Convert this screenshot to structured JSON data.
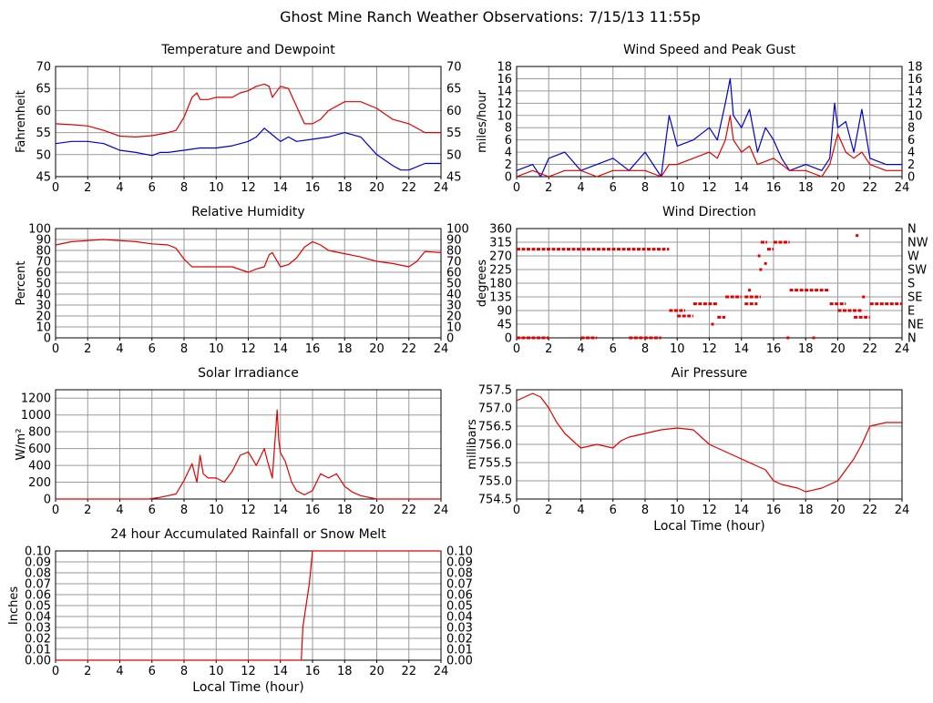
{
  "page_title": "Ghost Mine Ranch Weather Observations: 7/15/13 11:55p",
  "colors": {
    "red": "#e00000",
    "blue": "#0000cc",
    "grid": "#9a9a9a"
  },
  "chart_data": [
    {
      "id": "temp",
      "type": "line",
      "title": "Temperature and Dewpoint",
      "xlabel": "",
      "ylabel": "Fahrenheit",
      "xlim": [
        0,
        24
      ],
      "ylim": [
        45,
        70
      ],
      "xticks": [
        0,
        2,
        4,
        6,
        8,
        10,
        12,
        14,
        16,
        18,
        20,
        22,
        24
      ],
      "yticks": [
        45,
        50,
        55,
        60,
        65,
        70
      ],
      "series": [
        {
          "color": "red",
          "x": [
            0,
            1,
            2,
            3,
            4,
            5,
            6,
            7,
            7.5,
            8,
            8.5,
            8.8,
            9,
            9.5,
            10,
            11,
            11.5,
            12,
            12.5,
            13,
            13.3,
            13.5,
            14,
            14.5,
            15,
            15.5,
            16,
            16.5,
            17,
            18,
            19,
            20,
            21,
            22,
            23,
            24
          ],
          "y": [
            57,
            56.8,
            56.5,
            55.5,
            54.2,
            54,
            54.3,
            55,
            55.5,
            58.5,
            63,
            64,
            62.5,
            62.5,
            63,
            63,
            64,
            64.5,
            65.5,
            66,
            65.5,
            63,
            65.5,
            65,
            61,
            57,
            57,
            58,
            60,
            62,
            62,
            60.5,
            58,
            57,
            55,
            55
          ]
        },
        {
          "color": "blue",
          "x": [
            0,
            1,
            2,
            3,
            4,
            5,
            6,
            6.5,
            7,
            8,
            9,
            10,
            11,
            12,
            12.5,
            13,
            13.5,
            14,
            14.5,
            15,
            16,
            17,
            18,
            19,
            20,
            21,
            21.5,
            22,
            23,
            24
          ],
          "y": [
            52.5,
            53,
            53,
            52.5,
            51,
            50.5,
            49.8,
            50.5,
            50.5,
            51,
            51.5,
            51.5,
            52,
            53,
            54,
            56,
            54.5,
            53,
            54,
            53,
            53.5,
            54,
            55,
            54,
            50,
            47.5,
            46.5,
            46.5,
            48,
            48
          ]
        }
      ]
    },
    {
      "id": "wind",
      "type": "line",
      "title": "Wind Speed and Peak Gust",
      "xlabel": "",
      "ylabel": "miles/hour",
      "xlim": [
        0,
        24
      ],
      "ylim": [
        0,
        18
      ],
      "xticks": [
        0,
        2,
        4,
        6,
        8,
        10,
        12,
        14,
        16,
        18,
        20,
        22,
        24
      ],
      "yticks": [
        0,
        2,
        4,
        6,
        8,
        10,
        12,
        14,
        16,
        18
      ],
      "series": [
        {
          "color": "blue",
          "x": [
            0,
            1,
            1.5,
            2,
            3,
            4,
            5,
            6,
            7,
            8,
            9,
            9.5,
            10,
            11,
            12,
            12.5,
            13,
            13.3,
            13.5,
            14,
            14.5,
            15,
            15.5,
            16,
            16.5,
            17,
            18,
            19,
            19.5,
            19.8,
            20,
            20.5,
            21,
            21.5,
            22,
            23,
            24
          ],
          "y": [
            1,
            2,
            0,
            3,
            4,
            1,
            2,
            3,
            1,
            4,
            0,
            10,
            5,
            6,
            8,
            6,
            12,
            16,
            10,
            8,
            11,
            4,
            8,
            6,
            3,
            1,
            2,
            1,
            3,
            12,
            8,
            9,
            4,
            11,
            3,
            2,
            2
          ]
        },
        {
          "color": "red",
          "x": [
            0,
            1,
            2,
            3,
            4,
            5,
            6,
            7,
            8,
            9,
            9.5,
            10,
            11,
            12,
            12.5,
            13,
            13.3,
            13.5,
            14,
            14.5,
            15,
            16,
            17,
            18,
            19,
            19.5,
            20,
            20.5,
            21,
            21.5,
            22,
            23,
            24
          ],
          "y": [
            0,
            1,
            0,
            1,
            1,
            0,
            1,
            1,
            1,
            0,
            2,
            2,
            3,
            4,
            3,
            6,
            10,
            6,
            4,
            5,
            2,
            3,
            1,
            1,
            0,
            2,
            7,
            4,
            3,
            4,
            2,
            1,
            1
          ]
        }
      ]
    },
    {
      "id": "rh",
      "type": "line",
      "title": "Relative Humidity",
      "xlabel": "",
      "ylabel": "Percent",
      "xlim": [
        0,
        24
      ],
      "ylim": [
        0,
        100
      ],
      "xticks": [
        0,
        2,
        4,
        6,
        8,
        10,
        12,
        14,
        16,
        18,
        20,
        22,
        24
      ],
      "yticks": [
        0,
        10,
        20,
        30,
        40,
        50,
        60,
        70,
        80,
        90,
        100
      ],
      "series": [
        {
          "color": "red",
          "x": [
            0,
            1,
            2,
            3,
            4,
            5,
            6,
            7,
            7.5,
            8,
            8.5,
            9,
            10,
            11,
            12,
            12.5,
            13,
            13.3,
            13.5,
            14,
            14.5,
            15,
            15.5,
            16,
            16.5,
            17,
            18,
            19,
            20,
            21,
            22,
            22.5,
            23,
            24
          ],
          "y": [
            85,
            88,
            89,
            90,
            89,
            88,
            86,
            85,
            82,
            72,
            65,
            65,
            65,
            65,
            60,
            63,
            65,
            76,
            78,
            65,
            67,
            73,
            83,
            88,
            85,
            80,
            77,
            74,
            70,
            68,
            65,
            70,
            79,
            78
          ]
        }
      ]
    },
    {
      "id": "wdir",
      "type": "scatter",
      "title": "Wind Direction",
      "xlabel": "",
      "ylabel": "degrees",
      "xlim": [
        0,
        24
      ],
      "ylim": [
        0,
        360
      ],
      "xticks": [
        0,
        2,
        4,
        6,
        8,
        10,
        12,
        14,
        16,
        18,
        20,
        22,
        24
      ],
      "yticks": [
        0,
        45,
        90,
        135,
        180,
        225,
        270,
        315,
        360
      ],
      "ylabels_right": [
        "N",
        "NE",
        "E",
        "SE",
        "S",
        "SW",
        "W",
        "NW",
        "N"
      ],
      "segments": [
        {
          "x": [
            0,
            9.5
          ],
          "y": 292
        },
        {
          "x": [
            0,
            2
          ],
          "y": 0
        },
        {
          "x": [
            4,
            5
          ],
          "y": 0
        },
        {
          "x": [
            7,
            9
          ],
          "y": 0
        },
        {
          "x": [
            9.5,
            10.5
          ],
          "y": 90
        },
        {
          "x": [
            10,
            11
          ],
          "y": 72
        },
        {
          "x": [
            11,
            12.5
          ],
          "y": 112
        },
        {
          "x": [
            12.5,
            13
          ],
          "y": 68
        },
        {
          "x": [
            13,
            14
          ],
          "y": 135
        },
        {
          "x": [
            14.2,
            15.2
          ],
          "y": 135
        },
        {
          "x": [
            14.2,
            15
          ],
          "y": 112
        },
        {
          "x": [
            15.2,
            15.6
          ],
          "y": 315
        },
        {
          "x": [
            15.6,
            16
          ],
          "y": 292
        },
        {
          "x": [
            16,
            17
          ],
          "y": 315
        },
        {
          "x": [
            17,
            19.5
          ],
          "y": 157
        },
        {
          "x": [
            19.5,
            20.5
          ],
          "y": 112
        },
        {
          "x": [
            20,
            21.5
          ],
          "y": 90
        },
        {
          "x": [
            21,
            22
          ],
          "y": 68
        },
        {
          "x": [
            22,
            24
          ],
          "y": 112
        }
      ],
      "points": [
        {
          "x": 15.1,
          "y": 270
        },
        {
          "x": 15.2,
          "y": 225
        },
        {
          "x": 15.5,
          "y": 245
        },
        {
          "x": 16.9,
          "y": 0
        },
        {
          "x": 18.5,
          "y": 0
        },
        {
          "x": 21.2,
          "y": 337
        },
        {
          "x": 21.6,
          "y": 135
        },
        {
          "x": 12.2,
          "y": 45
        },
        {
          "x": 14.5,
          "y": 157
        }
      ]
    },
    {
      "id": "solar",
      "type": "line",
      "title": "Solar Irradiance",
      "xlabel": "",
      "ylabel": "W/m²",
      "xlim": [
        0,
        24
      ],
      "ylim": [
        0,
        1300
      ],
      "xticks": [
        0,
        2,
        4,
        6,
        8,
        10,
        12,
        14,
        16,
        18,
        20,
        22,
        24
      ],
      "yticks": [
        0,
        200,
        400,
        600,
        800,
        1000,
        1200
      ],
      "series": [
        {
          "color": "red",
          "x": [
            0,
            5.8,
            6.5,
            7,
            7.5,
            8,
            8.5,
            8.8,
            9,
            9.2,
            9.5,
            10,
            10.5,
            11,
            11.5,
            12,
            12.5,
            13,
            13.2,
            13.5,
            13.8,
            13.9,
            14,
            14.3,
            14.7,
            15,
            15.5,
            16,
            16.5,
            17,
            17.5,
            18,
            18.5,
            19,
            19.5,
            20,
            24
          ],
          "y": [
            0,
            0,
            20,
            40,
            60,
            220,
            420,
            200,
            520,
            300,
            250,
            250,
            200,
            330,
            520,
            560,
            400,
            600,
            450,
            250,
            1060,
            700,
            550,
            450,
            200,
            100,
            50,
            100,
            300,
            250,
            300,
            150,
            80,
            40,
            20,
            0,
            0
          ]
        }
      ]
    },
    {
      "id": "pressure",
      "type": "line",
      "title": "Air Pressure",
      "xlabel": "Local Time (hour)",
      "ylabel": "millibars",
      "xlim": [
        0,
        24
      ],
      "ylim": [
        754.5,
        757.5
      ],
      "xticks": [
        0,
        2,
        4,
        6,
        8,
        10,
        12,
        14,
        16,
        18,
        20,
        22,
        24
      ],
      "yticks": [
        "754.5",
        "755.0",
        "755.5",
        "756.0",
        "756.5",
        "757.0",
        "757.5"
      ],
      "series": [
        {
          "color": "red",
          "x": [
            0,
            0.5,
            1,
            1.5,
            2,
            2.5,
            3,
            3.5,
            4,
            5,
            6,
            6.5,
            7,
            8,
            9,
            10,
            11,
            11.5,
            12,
            13,
            14,
            15,
            15.5,
            16,
            16.5,
            17,
            17.5,
            18,
            19,
            20,
            20.5,
            21,
            21.5,
            22,
            23,
            24
          ],
          "y": [
            757.2,
            757.3,
            757.4,
            757.3,
            757.0,
            756.6,
            756.3,
            756.1,
            755.9,
            756.0,
            755.9,
            756.1,
            756.2,
            756.3,
            756.4,
            756.45,
            756.4,
            756.2,
            756.0,
            755.8,
            755.6,
            755.4,
            755.3,
            755.0,
            754.9,
            754.85,
            754.8,
            754.7,
            754.8,
            755.0,
            755.3,
            755.6,
            756.0,
            756.5,
            756.6,
            756.6
          ]
        }
      ]
    },
    {
      "id": "rain",
      "type": "line",
      "title": "24 hour Accumulated Rainfall or Snow Melt",
      "xlabel": "Local Time (hour)",
      "ylabel": "Inches",
      "xlim": [
        0,
        24
      ],
      "ylim": [
        0,
        0.1
      ],
      "xticks": [
        0,
        2,
        4,
        6,
        8,
        10,
        12,
        14,
        16,
        18,
        20,
        22,
        24
      ],
      "yticks": [
        "0.00",
        "0.01",
        "0.02",
        "0.03",
        "0.04",
        "0.05",
        "0.06",
        "0.07",
        "0.08",
        "0.09",
        "0.10"
      ],
      "series": [
        {
          "color": "red",
          "x": [
            0,
            15.3,
            15.4,
            15.6,
            15.8,
            16,
            24
          ],
          "y": [
            0,
            0,
            0.03,
            0.05,
            0.07,
            0.1,
            0.1
          ]
        }
      ]
    }
  ]
}
